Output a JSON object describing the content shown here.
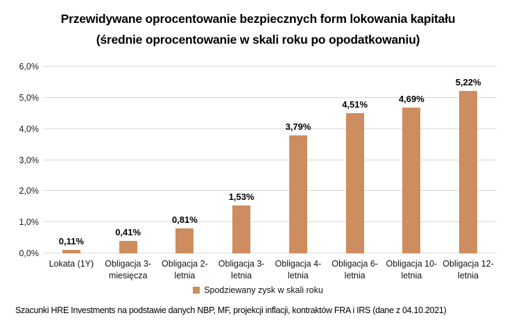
{
  "page": {
    "title_line1": "Przewidywane oprocentowanie bezpiecznych form lokowania kapitału",
    "title_line2": "(średnie oprocentowanie w skali roku po opodatkowaniu)",
    "footer": "Szacunki HRE Investments na podstawie danych NBP, MF, projekcji inflacji, kontraktów FRA i IRS (dane z 04.10.2021)"
  },
  "legend": {
    "label": "Spodziewany zysk w skali roku",
    "swatch_color": "#CD8D5E"
  },
  "chart_data": {
    "type": "bar",
    "title": "Przewidywane oprocentowanie bezpiecznych form lokowania kapitału (średnie oprocentowanie w skali roku po opodatkowaniu)",
    "categories": [
      "Lokata (1Y)",
      "Obligacja 3-miesięcza",
      "Obligacja 2-letnia",
      "Obligacja 3-letnia",
      "Obligacja 4-letnia",
      "Obligacja 6-letnia",
      "Obligacja 10-letnia",
      "Obligacja 12-letnia"
    ],
    "category_lines": [
      [
        "Lokata (1Y)"
      ],
      [
        "Obligacja 3-",
        "miesięcza"
      ],
      [
        "Obligacja 2-",
        "letnia"
      ],
      [
        "Obligacja 3-",
        "letnia"
      ],
      [
        "Obligacja 4-",
        "letnia"
      ],
      [
        "Obligacja 6-",
        "letnia"
      ],
      [
        "Obligacja 10-",
        "letnia"
      ],
      [
        "Obligacja 12-",
        "letnia"
      ]
    ],
    "values": [
      0.11,
      0.41,
      0.81,
      1.53,
      3.79,
      4.51,
      4.69,
      5.22
    ],
    "value_labels": [
      "0,11%",
      "0,41%",
      "0,81%",
      "1,53%",
      "3,79%",
      "4,51%",
      "4,69%",
      "5,22%"
    ],
    "xlabel": "",
    "ylabel": "",
    "ylim": [
      0,
      6
    ],
    "ytick_values": [
      0,
      1,
      2,
      3,
      4,
      5,
      6
    ],
    "ytick_labels": [
      "0,0%",
      "1,0%",
      "2,0%",
      "3,0%",
      "4,0%",
      "5,0%",
      "6,0%"
    ],
    "series": [
      {
        "name": "Spodziewany zysk w skali roku",
        "values": [
          0.11,
          0.41,
          0.81,
          1.53,
          3.79,
          4.51,
          4.69,
          5.22
        ]
      }
    ],
    "legend_position": "bottom",
    "grid": true,
    "bar_color": "#CD8D5E",
    "gridline_color": "#D9D9D9"
  }
}
